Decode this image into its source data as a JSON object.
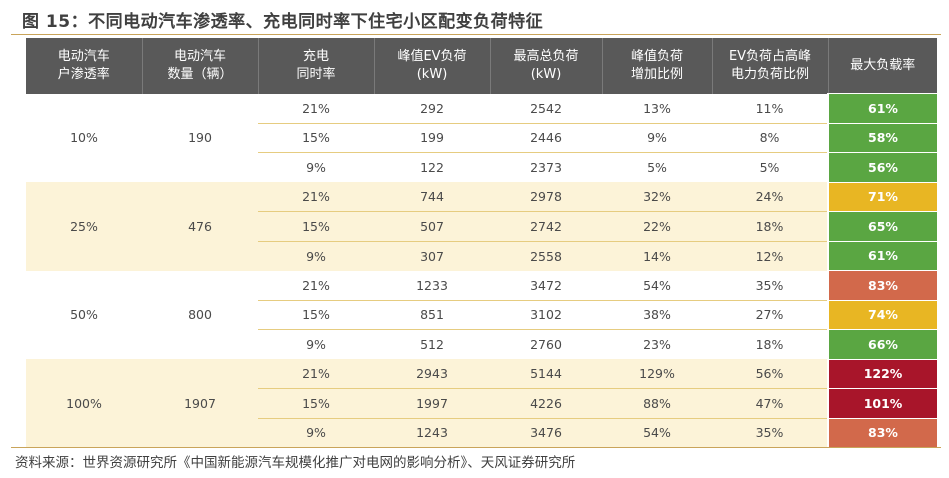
{
  "title": "图 15：不同电动汽车渗透率、充电同时率下住宅小区配变负荷特征",
  "headers": [
    [
      "电动汽车",
      "户渗透率"
    ],
    [
      "电动汽车",
      "数量（辆）"
    ],
    [
      "充电",
      "同时率"
    ],
    [
      "峰值EV负荷",
      "(kW)"
    ],
    [
      "最高总负荷",
      "(kW)"
    ],
    [
      "峰值负荷",
      "增加比例"
    ],
    [
      "EV负荷占高峰",
      "电力负荷比例"
    ],
    [
      "最大负载率",
      ""
    ]
  ],
  "groups": [
    {
      "penetration": "10%",
      "vehicles": "190",
      "rows": [
        {
          "sync": "21%",
          "ev_peak": "292",
          "total_peak": "2542",
          "increase": "13%",
          "ev_share": "11%",
          "max_load": "61%"
        },
        {
          "sync": "15%",
          "ev_peak": "199",
          "total_peak": "2446",
          "increase": "9%",
          "ev_share": "8%",
          "max_load": "58%"
        },
        {
          "sync": "9%",
          "ev_peak": "122",
          "total_peak": "2373",
          "increase": "5%",
          "ev_share": "5%",
          "max_load": "56%"
        }
      ]
    },
    {
      "penetration": "25%",
      "vehicles": "476",
      "rows": [
        {
          "sync": "21%",
          "ev_peak": "744",
          "total_peak": "2978",
          "increase": "32%",
          "ev_share": "24%",
          "max_load": "71%"
        },
        {
          "sync": "15%",
          "ev_peak": "507",
          "total_peak": "2742",
          "increase": "22%",
          "ev_share": "18%",
          "max_load": "65%"
        },
        {
          "sync": "9%",
          "ev_peak": "307",
          "total_peak": "2558",
          "increase": "14%",
          "ev_share": "12%",
          "max_load": "61%"
        }
      ]
    },
    {
      "penetration": "50%",
      "vehicles": "800",
      "rows": [
        {
          "sync": "21%",
          "ev_peak": "1233",
          "total_peak": "3472",
          "increase": "54%",
          "ev_share": "35%",
          "max_load": "83%"
        },
        {
          "sync": "15%",
          "ev_peak": "851",
          "total_peak": "3102",
          "increase": "38%",
          "ev_share": "27%",
          "max_load": "74%"
        },
        {
          "sync": "9%",
          "ev_peak": "512",
          "total_peak": "2760",
          "increase": "23%",
          "ev_share": "18%",
          "max_load": "66%"
        }
      ]
    },
    {
      "penetration": "100%",
      "vehicles": "1907",
      "rows": [
        {
          "sync": "21%",
          "ev_peak": "2943",
          "total_peak": "5144",
          "increase": "129%",
          "ev_share": "56%",
          "max_load": "122%"
        },
        {
          "sync": "15%",
          "ev_peak": "1997",
          "total_peak": "4226",
          "increase": "88%",
          "ev_share": "47%",
          "max_load": "101%"
        },
        {
          "sync": "9%",
          "ev_peak": "1243",
          "total_peak": "3476",
          "increase": "54%",
          "ev_share": "35%",
          "max_load": "83%"
        }
      ]
    }
  ],
  "load_colors": {
    "green": "#5aa642",
    "yellow": "#e8b623",
    "orange": "#d2694b",
    "red": "#a8152a"
  },
  "source": "资料来源：世界资源研究所《中国新能源汽车规模化推广对电网的影响分析》、天风证券研究所"
}
